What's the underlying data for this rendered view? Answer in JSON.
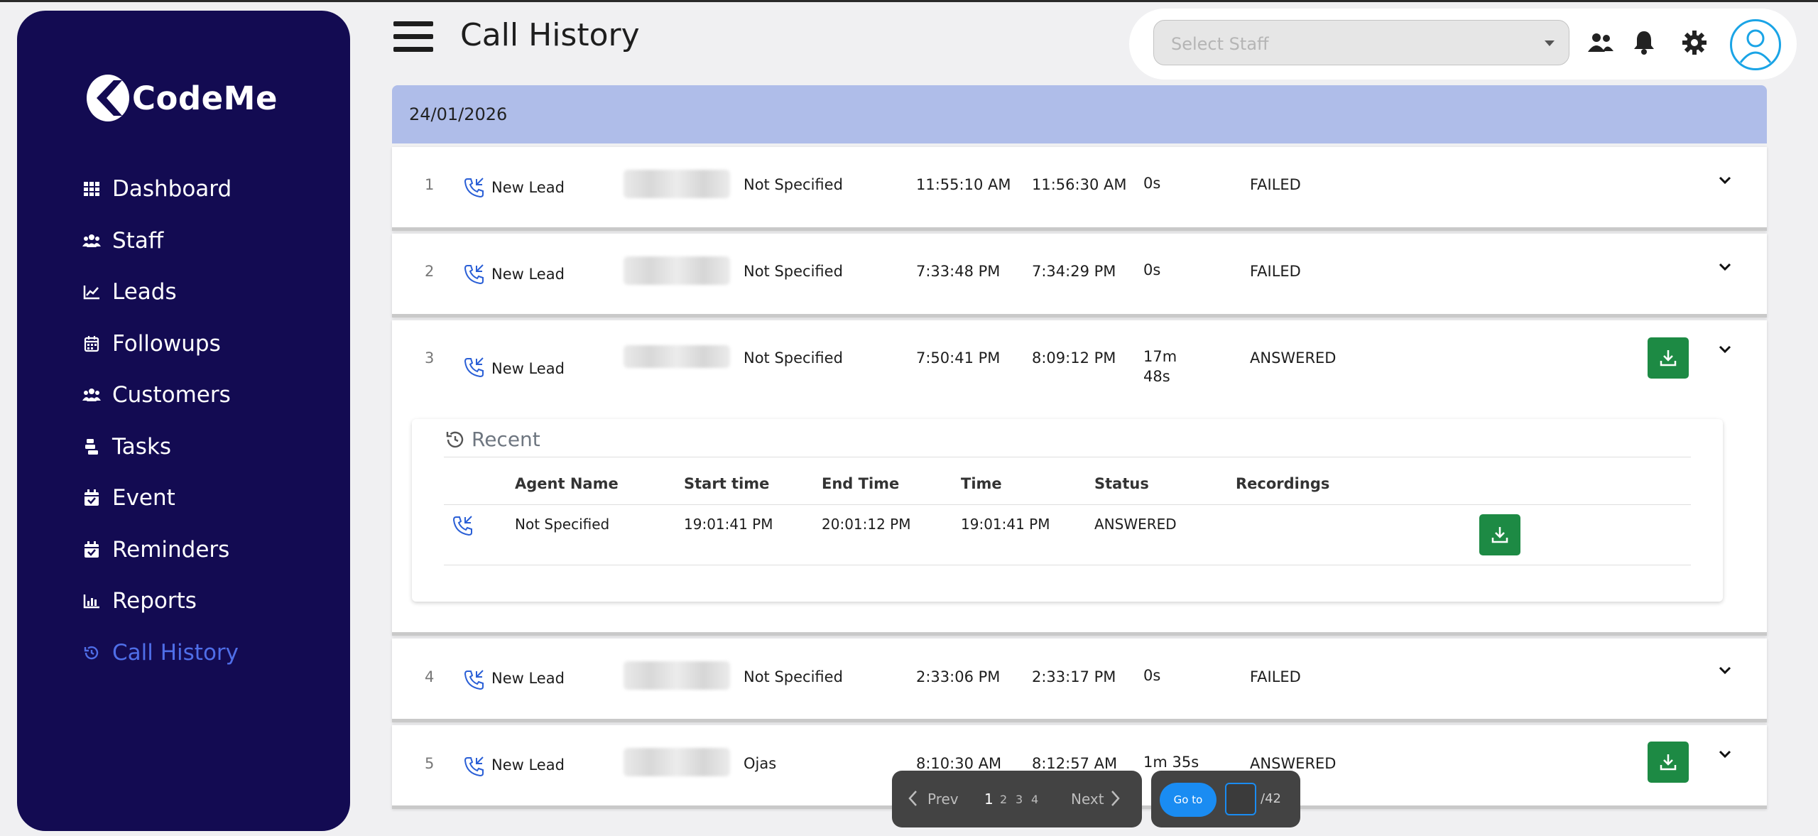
{
  "sidebar": {
    "logo_text": "CodeMe",
    "items": [
      {
        "label": "Dashboard",
        "icon": "grid-icon"
      },
      {
        "label": "Staff",
        "icon": "users-icon"
      },
      {
        "label": "Leads",
        "icon": "chart-line-icon"
      },
      {
        "label": "Followups",
        "icon": "calendar-icon"
      },
      {
        "label": "Customers",
        "icon": "users-icon"
      },
      {
        "label": "Tasks",
        "icon": "tasks-icon"
      },
      {
        "label": "Event",
        "icon": "calendar-check-icon"
      },
      {
        "label": "Reminders",
        "icon": "calendar-check-icon"
      },
      {
        "label": "Reports",
        "icon": "bar-chart-icon"
      },
      {
        "label": "Call History",
        "icon": "history-icon",
        "active": true
      }
    ]
  },
  "header": {
    "title": "Call History",
    "staff_select_placeholder": "Select Staff"
  },
  "date_group": "24/01/2026",
  "calls": [
    {
      "num": "1",
      "lead": "New Lead",
      "agent": "Not Specified",
      "start": "11:55:10 AM",
      "end": "11:56:30 AM",
      "duration": "0s",
      "duration2": "",
      "status": "FAILED"
    },
    {
      "num": "2",
      "lead": "New Lead",
      "agent": "Not Specified",
      "start": "7:33:48 PM",
      "end": "7:34:29 PM",
      "duration": "0s",
      "duration2": "",
      "status": "FAILED"
    },
    {
      "num": "3",
      "lead": "New Lead",
      "agent": "Not Specified",
      "start": "7:50:41 PM",
      "end": "8:09:12 PM",
      "duration": "17m",
      "duration2": "48s",
      "status": "ANSWERED"
    },
    {
      "num": "4",
      "lead": "New Lead",
      "agent": "Not Specified",
      "start": "2:33:06 PM",
      "end": "2:33:17 PM",
      "duration": "0s",
      "duration2": "",
      "status": "FAILED"
    },
    {
      "num": "5",
      "lead": "New Lead",
      "agent": "Ojas",
      "start": "8:10:30 AM",
      "end": "8:12:57 AM",
      "duration": "1m 35s",
      "duration2": "",
      "status": "ANSWERED"
    }
  ],
  "recent": {
    "title": "Recent",
    "headers": [
      "Agent Name",
      "Start time",
      "End Time",
      "Time",
      "Status",
      "Recordings"
    ],
    "row": {
      "agent": "Not Specified",
      "start": "19:01:41 PM",
      "end": "20:01:12 PM",
      "time": "19:01:41 PM",
      "status": "ANSWERED"
    }
  },
  "pagination": {
    "prev": "Prev",
    "next": "Next",
    "pages": [
      "1",
      "2",
      "3",
      "4"
    ],
    "goto_label": "Go to",
    "total": "/42"
  },
  "colors": {
    "sidebar_bg": "#130b52",
    "active_nav": "#4f6ee8",
    "date_bar": "#afbde9",
    "download_button": "#1d8a44",
    "goto_button": "#1a8cf2"
  }
}
